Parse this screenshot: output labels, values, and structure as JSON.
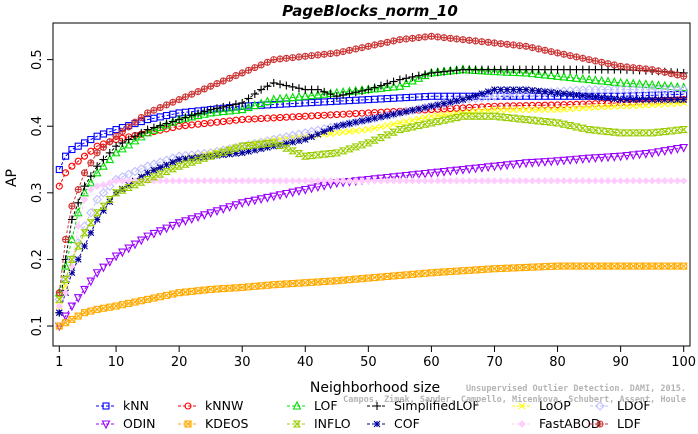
{
  "chart_data": {
    "type": "line",
    "title": "PageBlocks_norm_10",
    "xlabel": "Neighborhood size",
    "ylabel": "AP",
    "xlim": [
      0,
      101
    ],
    "ylim": [
      0.07,
      0.555
    ],
    "xticks": [
      1,
      10,
      20,
      30,
      40,
      50,
      60,
      70,
      80,
      90,
      100
    ],
    "yticks": [
      0.1,
      0.2,
      0.3,
      0.4,
      0.5
    ],
    "ytick_labels": [
      "0.1",
      "0.2",
      "0.3",
      "0.4",
      "0.5"
    ],
    "grid": false,
    "legend_position": "bottom",
    "watermark": [
      "Unsupervised Outlier Detection. DAMI, 2015.",
      "Campos, Zimek, Sander, Campello, Micenkova, Schubert, Assent, Houle"
    ],
    "series": [
      {
        "name": "kNN",
        "color": "#0000ff",
        "marker": "square",
        "x": [
          1,
          2,
          3,
          5,
          7,
          10,
          15,
          20,
          30,
          40,
          50,
          60,
          70,
          80,
          90,
          100
        ],
        "y": [
          0.335,
          0.355,
          0.365,
          0.375,
          0.385,
          0.395,
          0.41,
          0.42,
          0.43,
          0.435,
          0.44,
          0.445,
          0.445,
          0.445,
          0.445,
          0.448
        ]
      },
      {
        "name": "kNNW",
        "color": "#ff0000",
        "marker": "circle",
        "x": [
          1,
          2,
          3,
          5,
          7,
          10,
          15,
          20,
          30,
          40,
          50,
          60,
          70,
          80,
          90,
          100
        ],
        "y": [
          0.31,
          0.33,
          0.34,
          0.355,
          0.37,
          0.38,
          0.39,
          0.4,
          0.41,
          0.415,
          0.42,
          0.425,
          0.43,
          0.432,
          0.435,
          0.44
        ]
      },
      {
        "name": "LOF",
        "color": "#00dd00",
        "marker": "triangle-up",
        "x": [
          1,
          2,
          3,
          4,
          5,
          7,
          10,
          15,
          20,
          25,
          30,
          35,
          40,
          45,
          50,
          55,
          60,
          65,
          70,
          75,
          80,
          85,
          90,
          95,
          100
        ],
        "y": [
          0.15,
          0.19,
          0.23,
          0.27,
          0.3,
          0.33,
          0.36,
          0.39,
          0.41,
          0.42,
          0.425,
          0.44,
          0.445,
          0.45,
          0.455,
          0.46,
          0.48,
          0.485,
          0.482,
          0.48,
          0.475,
          0.47,
          0.465,
          0.462,
          0.458
        ]
      },
      {
        "name": "SimplifiedLOF",
        "color": "#000000",
        "marker": "plus",
        "x": [
          1,
          2,
          3,
          5,
          7,
          10,
          15,
          20,
          25,
          30,
          33,
          35,
          40,
          42,
          45,
          50,
          55,
          60,
          65,
          70,
          75,
          80,
          85,
          90,
          95,
          100
        ],
        "y": [
          0.12,
          0.2,
          0.26,
          0.31,
          0.34,
          0.37,
          0.395,
          0.41,
          0.425,
          0.435,
          0.455,
          0.465,
          0.455,
          0.455,
          0.445,
          0.455,
          0.47,
          0.48,
          0.485,
          0.485,
          0.485,
          0.485,
          0.485,
          0.485,
          0.483,
          0.48
        ]
      },
      {
        "name": "LoOP",
        "color": "#ffff00",
        "marker": "x",
        "x": [
          1,
          2,
          3,
          5,
          7,
          10,
          15,
          20,
          25,
          30,
          35,
          40,
          45,
          50,
          55,
          60,
          65,
          70,
          75,
          80,
          85,
          90,
          95,
          100
        ],
        "y": [
          0.13,
          0.16,
          0.2,
          0.24,
          0.27,
          0.3,
          0.33,
          0.35,
          0.36,
          0.37,
          0.38,
          0.385,
          0.39,
          0.395,
          0.405,
          0.415,
          0.42,
          0.425,
          0.425,
          0.425,
          0.428,
          0.43,
          0.432,
          0.435
        ]
      },
      {
        "name": "LDOF",
        "color": "#c0c0ff",
        "marker": "diamond",
        "x": [
          1,
          2,
          3,
          5,
          7,
          10,
          15,
          20,
          25,
          30,
          35,
          40,
          45,
          50,
          55,
          60,
          65,
          70,
          75,
          80,
          85,
          90,
          95,
          100
        ],
        "y": [
          0.14,
          0.17,
          0.2,
          0.25,
          0.29,
          0.32,
          0.34,
          0.355,
          0.36,
          0.37,
          0.38,
          0.39,
          0.4,
          0.41,
          0.42,
          0.43,
          0.44,
          0.445,
          0.45,
          0.452,
          0.455,
          0.455,
          0.455,
          0.455
        ]
      },
      {
        "name": "ODIN",
        "color": "#9900ff",
        "marker": "triangle-down",
        "x": [
          1,
          2,
          3,
          5,
          7,
          10,
          15,
          20,
          25,
          30,
          35,
          40,
          45,
          50,
          55,
          60,
          65,
          70,
          75,
          80,
          85,
          90,
          95,
          100
        ],
        "y": [
          0.1,
          0.115,
          0.13,
          0.155,
          0.18,
          0.205,
          0.235,
          0.255,
          0.27,
          0.285,
          0.295,
          0.305,
          0.315,
          0.32,
          0.325,
          0.33,
          0.335,
          0.34,
          0.345,
          0.348,
          0.352,
          0.355,
          0.36,
          0.368
        ]
      },
      {
        "name": "KDEOS",
        "color": "#ffaa00",
        "marker": "square-x",
        "x": [
          1,
          2,
          3,
          5,
          7,
          10,
          15,
          20,
          25,
          30,
          35,
          40,
          45,
          50,
          55,
          60,
          65,
          70,
          75,
          80,
          85,
          90,
          95,
          100
        ],
        "y": [
          0.1,
          0.105,
          0.11,
          0.12,
          0.125,
          0.13,
          0.14,
          0.15,
          0.155,
          0.158,
          0.162,
          0.165,
          0.168,
          0.172,
          0.176,
          0.18,
          0.183,
          0.186,
          0.188,
          0.19,
          0.19,
          0.19,
          0.19,
          0.19
        ]
      },
      {
        "name": "COF",
        "color": "#000099",
        "marker": "asterisk",
        "x": [
          1,
          2,
          3,
          5,
          7,
          10,
          15,
          20,
          25,
          30,
          35,
          40,
          45,
          50,
          55,
          60,
          65,
          70,
          75,
          80,
          85,
          90,
          95,
          100
        ],
        "y": [
          0.12,
          0.15,
          0.18,
          0.22,
          0.26,
          0.3,
          0.33,
          0.35,
          0.355,
          0.36,
          0.37,
          0.38,
          0.4,
          0.41,
          0.42,
          0.43,
          0.44,
          0.455,
          0.455,
          0.45,
          0.445,
          0.44,
          0.44,
          0.44
        ]
      },
      {
        "name": "FastABOD",
        "color": "#ffccff",
        "marker": "diamond-filled",
        "x": [
          1,
          2,
          3,
          4,
          5,
          6,
          7,
          8,
          9,
          10,
          15,
          20,
          25,
          30,
          40,
          50,
          60,
          70,
          80,
          90,
          100
        ],
        "y": [
          0.13,
          0.15,
          0.19,
          0.25,
          0.29,
          0.305,
          0.31,
          0.312,
          0.315,
          0.318,
          0.318,
          0.318,
          0.318,
          0.318,
          0.318,
          0.318,
          0.318,
          0.318,
          0.318,
          0.318,
          0.318
        ]
      },
      {
        "name": "LDF",
        "color": "#cc3333",
        "marker": "circle-plus",
        "x": [
          1,
          2,
          3,
          5,
          7,
          10,
          15,
          20,
          25,
          30,
          35,
          40,
          45,
          50,
          55,
          60,
          65,
          70,
          75,
          80,
          85,
          90,
          95,
          100
        ],
        "y": [
          0.15,
          0.23,
          0.28,
          0.33,
          0.36,
          0.385,
          0.42,
          0.44,
          0.46,
          0.48,
          0.5,
          0.505,
          0.51,
          0.52,
          0.53,
          0.535,
          0.53,
          0.525,
          0.52,
          0.51,
          0.5,
          0.49,
          0.485,
          0.475
        ]
      },
      {
        "name": "INFLO",
        "color": "#99cc00",
        "marker": "hourglass",
        "x": [
          1,
          2,
          3,
          5,
          7,
          10,
          15,
          20,
          25,
          30,
          35,
          40,
          45,
          50,
          55,
          60,
          65,
          70,
          75,
          80,
          85,
          90,
          95,
          100
        ],
        "y": [
          0.14,
          0.17,
          0.2,
          0.24,
          0.27,
          0.3,
          0.32,
          0.34,
          0.355,
          0.37,
          0.375,
          0.355,
          0.36,
          0.375,
          0.395,
          0.405,
          0.415,
          0.415,
          0.41,
          0.405,
          0.395,
          0.39,
          0.39,
          0.395
        ]
      }
    ]
  }
}
